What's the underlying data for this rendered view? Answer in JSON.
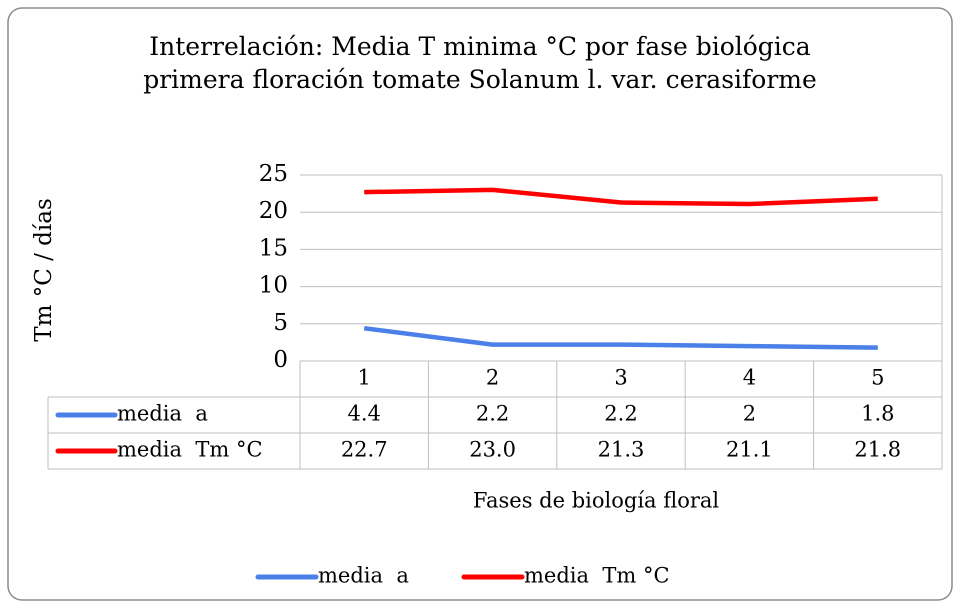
{
  "chart_data": {
    "type": "line",
    "title": "Interrelación: Media T minima °C por fase biológica primera floración tomate Solanum l. var. cerasiforme",
    "y_label": "Tm °C / días",
    "x_label": "Fases de biología floral",
    "categories": [
      "1",
      "2",
      "3",
      "4",
      "5"
    ],
    "series": [
      {
        "name": "media  a",
        "color": "#4a80e8",
        "values": [
          4.4,
          2.2,
          2.2,
          2,
          1.8
        ]
      },
      {
        "name": "media  Tm °C",
        "color": "#ff0000",
        "values": [
          22.7,
          23.0,
          21.3,
          21.1,
          21.8
        ],
        "value_labels": [
          "22.7",
          "23.0",
          "21.3",
          "21.1",
          "21.8"
        ]
      }
    ],
    "ylim": [
      0,
      25
    ],
    "yticks": [
      0,
      5,
      10,
      15,
      20,
      25
    ],
    "grid": true,
    "data_table": true,
    "legend": "bottom"
  }
}
